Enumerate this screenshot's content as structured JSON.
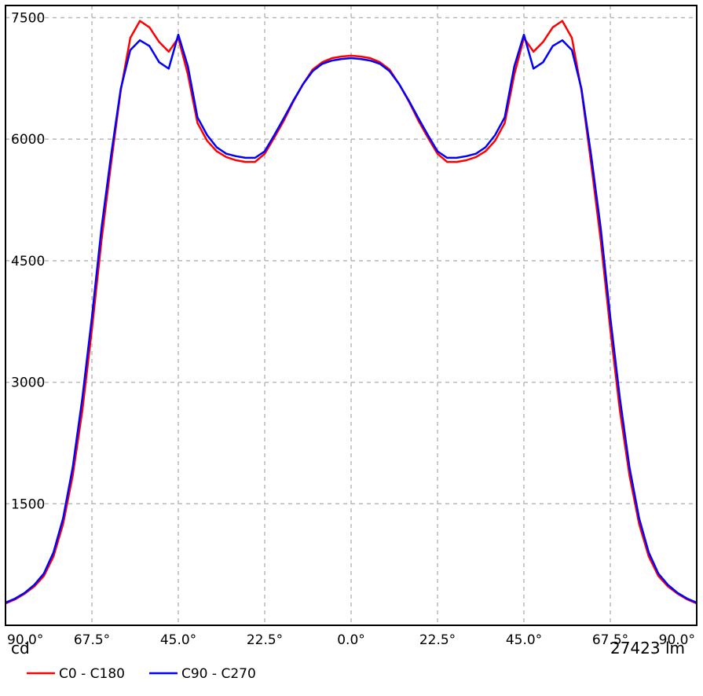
{
  "chart_data": {
    "type": "line",
    "y_unit_label": "cd",
    "flux_label": "27423 lm",
    "xlim": [
      -90,
      90
    ],
    "ylim": [
      0,
      7650
    ],
    "x_ticks": [
      -90,
      -67.5,
      -45,
      -22.5,
      0,
      22.5,
      45,
      67.5,
      90
    ],
    "x_tick_labels": [
      "90.0°",
      "67.5°",
      "45.0°",
      "22.5°",
      "0.0°",
      "22.5°",
      "45.0°",
      "67.5°",
      "90.0°"
    ],
    "y_ticks": [
      1500,
      3000,
      4500,
      6000,
      7500
    ],
    "y_tick_labels": [
      "1500",
      "3000",
      "4500",
      "6000",
      "7500"
    ],
    "grid": true,
    "legend_position": "bottom-left",
    "series": [
      {
        "name": "C0 - C180",
        "color": "#ff0000",
        "x": [
          -90,
          -87.5,
          -85,
          -82.5,
          -80,
          -77.5,
          -75,
          -72.5,
          -70,
          -67.5,
          -65,
          -62.5,
          -60,
          -57.5,
          -55,
          -52.5,
          -50,
          -47.5,
          -45,
          -42.5,
          -40,
          -37.5,
          -35,
          -32.5,
          -30,
          -27.5,
          -25,
          -22.5,
          -20,
          -17.5,
          -15,
          -12.5,
          -10,
          -7.5,
          -5,
          -2.5,
          0,
          2.5,
          5,
          7.5,
          10,
          12.5,
          15,
          17.5,
          20,
          22.5,
          25,
          27.5,
          30,
          32.5,
          35,
          37.5,
          40,
          42.5,
          45,
          47.5,
          50,
          52.5,
          55,
          57.5,
          60,
          62.5,
          65,
          67.5,
          70,
          72.5,
          75,
          77.5,
          80,
          82.5,
          85,
          87.5,
          90
        ],
        "values": [
          270,
          320,
          390,
          480,
          610,
          850,
          1250,
          1850,
          2650,
          3650,
          4750,
          5700,
          6600,
          7250,
          7460,
          7380,
          7200,
          7080,
          7250,
          6800,
          6200,
          5980,
          5850,
          5780,
          5740,
          5720,
          5720,
          5820,
          6020,
          6230,
          6470,
          6680,
          6860,
          6950,
          7000,
          7020,
          7030,
          7020,
          7000,
          6950,
          6860,
          6680,
          6470,
          6230,
          6020,
          5820,
          5720,
          5720,
          5740,
          5780,
          5850,
          5980,
          6200,
          6800,
          7250,
          7080,
          7200,
          7380,
          7460,
          7250,
          6600,
          5700,
          4750,
          3650,
          2650,
          1850,
          1250,
          850,
          610,
          480,
          390,
          320,
          270
        ]
      },
      {
        "name": "C90 - C270",
        "color": "#0000ff",
        "x": [
          -90,
          -87.5,
          -85,
          -82.5,
          -80,
          -77.5,
          -75,
          -72.5,
          -70,
          -67.5,
          -65,
          -62.5,
          -60,
          -57.5,
          -55,
          -52.5,
          -50,
          -47.5,
          -45,
          -42.5,
          -40,
          -37.5,
          -35,
          -32.5,
          -30,
          -27.5,
          -25,
          -22.5,
          -20,
          -17.5,
          -15,
          -12.5,
          -10,
          -7.5,
          -5,
          -2.5,
          0,
          2.5,
          5,
          7.5,
          10,
          12.5,
          15,
          17.5,
          20,
          22.5,
          25,
          27.5,
          30,
          32.5,
          35,
          37.5,
          40,
          42.5,
          45,
          47.5,
          50,
          52.5,
          55,
          57.5,
          60,
          62.5,
          65,
          67.5,
          70,
          72.5,
          75,
          77.5,
          80,
          82.5,
          85,
          87.5,
          90
        ],
        "values": [
          280,
          330,
          400,
          500,
          640,
          900,
          1320,
          1950,
          2800,
          3800,
          4900,
          5800,
          6620,
          7100,
          7220,
          7150,
          6950,
          6870,
          7290,
          6900,
          6270,
          6050,
          5900,
          5820,
          5790,
          5770,
          5770,
          5850,
          6050,
          6260,
          6480,
          6680,
          6840,
          6930,
          6970,
          6990,
          7000,
          6990,
          6970,
          6930,
          6840,
          6680,
          6480,
          6260,
          6050,
          5850,
          5770,
          5770,
          5790,
          5820,
          5900,
          6050,
          6270,
          6900,
          7290,
          6870,
          6950,
          7150,
          7220,
          7100,
          6620,
          5800,
          4900,
          3800,
          2800,
          1950,
          1320,
          900,
          640,
          500,
          400,
          330,
          280
        ]
      }
    ]
  }
}
